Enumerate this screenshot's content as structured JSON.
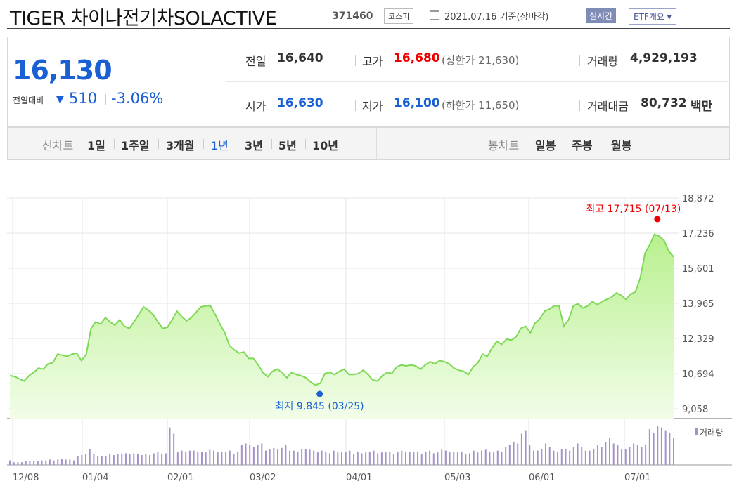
{
  "header": {
    "title": "TIGER 차이나전기차SOLACTIVE",
    "code": "371460",
    "market": "코스피",
    "date": "2021.07.16  기준(장마감)",
    "realtime": "실시간",
    "etf_overview": "ETF개요 ▾"
  },
  "summary": {
    "price": "16,130",
    "change_label": "전일대비",
    "change_arrow": "▼",
    "change": "510",
    "change_pct": "-3.06%",
    "prev_label": "전일",
    "prev": "16,640",
    "high_label": "고가",
    "high": "16,680",
    "upper_limit": "(상한가 21,630)",
    "volume_label": "거래량",
    "volume": "4,929,193",
    "open_label": "시가",
    "open": "16,630",
    "low_label": "저가",
    "low": "16,100",
    "lower_limit": "(하한가 11,650)",
    "amount_label": "거래대금",
    "amount": "80,732",
    "amount_unit": "백만"
  },
  "periods": {
    "line_label": "선차트",
    "line_items": [
      "1일",
      "1주일",
      "3개월",
      "1년",
      "3년",
      "5년",
      "10년"
    ],
    "active": "1년",
    "candle_label": "봉차트",
    "candle_items": [
      "일봉",
      "주봉",
      "월봉"
    ]
  },
  "chart_data": {
    "type": "area",
    "yticks": [
      "18,872",
      "17,236",
      "15,601",
      "13,965",
      "12,329",
      "10,694",
      "9,058"
    ],
    "ylim": [
      9058,
      18872
    ],
    "xticks": [
      "12/08",
      "01/04",
      "02/01",
      "03/02",
      "04/01",
      "05/03",
      "06/01",
      "07/01"
    ],
    "high_annotation": "최고 17,715 (07/13)",
    "low_annotation": "최저 9,845 (03/25)",
    "volume_legend": "거래량",
    "colors": {
      "line": "#7ed957",
      "fill_top": "#b8f08e",
      "fill_bottom": "#f2fde9",
      "high": "#e00",
      "low": "#1a5fd3",
      "volume": "#a591cc"
    },
    "price_series": [
      10600,
      10560,
      10450,
      10350,
      10600,
      10750,
      10950,
      10900,
      11150,
      11200,
      11600,
      11550,
      11500,
      11600,
      11650,
      11300,
      11600,
      12800,
      13100,
      13000,
      13300,
      13100,
      12950,
      13200,
      12900,
      12800,
      13100,
      13450,
      13800,
      13650,
      13450,
      13100,
      12800,
      12850,
      13200,
      13600,
      13350,
      13150,
      13300,
      13550,
      13800,
      13850,
      13850,
      13450,
      13000,
      12600,
      12000,
      11800,
      11650,
      11700,
      11400,
      11400,
      11100,
      10750,
      10550,
      10800,
      10900,
      10750,
      10500,
      10750,
      10650,
      10600,
      10500,
      10300,
      10150,
      10250,
      10700,
      10750,
      10650,
      10800,
      10900,
      10650,
      10650,
      10700,
      10850,
      10650,
      10400,
      10350,
      10600,
      10750,
      10700,
      11000,
      11100,
      11050,
      11100,
      11050,
      10900,
      11100,
      11250,
      11150,
      11300,
      11250,
      11150,
      10950,
      10850,
      10800,
      10650,
      11000,
      11200,
      11600,
      11500,
      11900,
      12200,
      12050,
      12300,
      12250,
      12400,
      12800,
      12900,
      12600,
      13050,
      13250,
      13600,
      13700,
      13850,
      13850,
      12900,
      13200,
      13850,
      13950,
      13750,
      13850,
      14050,
      13900,
      14050,
      14150,
      14250,
      14450,
      14350,
      14150,
      14400,
      14500,
      15150,
      16300,
      16700,
      17180,
      17100,
      16900,
      16400,
      16130
    ],
    "volume_series": [
      5,
      3,
      3,
      3,
      4,
      4,
      4,
      4,
      5,
      5,
      6,
      5,
      6,
      7,
      6,
      6,
      5,
      10,
      11,
      12,
      18,
      12,
      10,
      10,
      10,
      12,
      11,
      12,
      12,
      13,
      12,
      13,
      12,
      11,
      12,
      11,
      13,
      14,
      12,
      13,
      42,
      35,
      14,
      16,
      15,
      16,
      16,
      15,
      15,
      14,
      17,
      16,
      14,
      15,
      15,
      16,
      12,
      15,
      22,
      24,
      22,
      20,
      22,
      24,
      16,
      18,
      19,
      18,
      19,
      22,
      16,
      16,
      15,
      18,
      18,
      17,
      16,
      14,
      16,
      15,
      13,
      16,
      14,
      14,
      15,
      16,
      12,
      15,
      13,
      14,
      15,
      16,
      13,
      14,
      14,
      15,
      12,
      15,
      16,
      15,
      15,
      14,
      15,
      12,
      15,
      16,
      13,
      14,
      17,
      16,
      15,
      15,
      14,
      15,
      12,
      13,
      16,
      14,
      16,
      17,
      15,
      14,
      16,
      15,
      20,
      22,
      26,
      24,
      35,
      38,
      22,
      16,
      16,
      18,
      24,
      20,
      16,
      15,
      18,
      18,
      16,
      20,
      24,
      20,
      16,
      16,
      18,
      22,
      20,
      26,
      30,
      24,
      22,
      18,
      18,
      20,
      24,
      22,
      20,
      23,
      40,
      36,
      44,
      42,
      38,
      36,
      30
    ]
  }
}
